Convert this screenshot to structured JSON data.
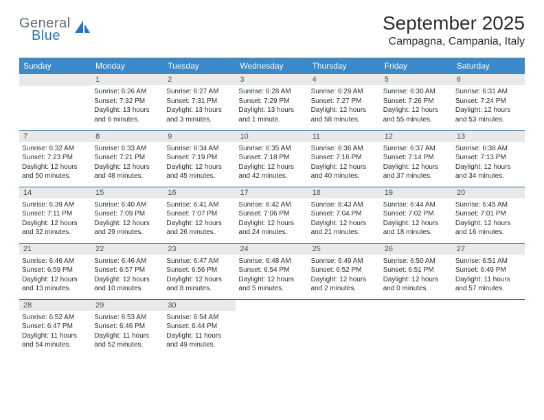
{
  "logo": {
    "general": "General",
    "blue": "Blue",
    "icon_color": "#2877bc"
  },
  "title": "September 2025",
  "location": "Campagna, Campania, Italy",
  "colors": {
    "header_bg": "#3b89c8",
    "header_fg": "#ffffff",
    "daynum_bg": "#e7e9ea",
    "row_border": "#2b5f8f",
    "text": "#2a2e33",
    "logo_gray": "#606a73",
    "logo_blue": "#2877bc",
    "page_bg": "#ffffff"
  },
  "typography": {
    "title_fontsize": 28,
    "location_fontsize": 16,
    "dayheader_fontsize": 12,
    "cell_fontsize": 10,
    "daynum_fontsize": 11,
    "logo_fontsize": 20
  },
  "day_headers": [
    "Sunday",
    "Monday",
    "Tuesday",
    "Wednesday",
    "Thursday",
    "Friday",
    "Saturday"
  ],
  "weeks": [
    [
      null,
      {
        "n": "1",
        "sr": "Sunrise: 6:26 AM",
        "ss": "Sunset: 7:32 PM",
        "d1": "Daylight: 13 hours",
        "d2": "and 6 minutes."
      },
      {
        "n": "2",
        "sr": "Sunrise: 6:27 AM",
        "ss": "Sunset: 7:31 PM",
        "d1": "Daylight: 13 hours",
        "d2": "and 3 minutes."
      },
      {
        "n": "3",
        "sr": "Sunrise: 6:28 AM",
        "ss": "Sunset: 7:29 PM",
        "d1": "Daylight: 13 hours",
        "d2": "and 1 minute."
      },
      {
        "n": "4",
        "sr": "Sunrise: 6:29 AM",
        "ss": "Sunset: 7:27 PM",
        "d1": "Daylight: 12 hours",
        "d2": "and 58 minutes."
      },
      {
        "n": "5",
        "sr": "Sunrise: 6:30 AM",
        "ss": "Sunset: 7:26 PM",
        "d1": "Daylight: 12 hours",
        "d2": "and 55 minutes."
      },
      {
        "n": "6",
        "sr": "Sunrise: 6:31 AM",
        "ss": "Sunset: 7:24 PM",
        "d1": "Daylight: 12 hours",
        "d2": "and 53 minutes."
      }
    ],
    [
      {
        "n": "7",
        "sr": "Sunrise: 6:32 AM",
        "ss": "Sunset: 7:23 PM",
        "d1": "Daylight: 12 hours",
        "d2": "and 50 minutes."
      },
      {
        "n": "8",
        "sr": "Sunrise: 6:33 AM",
        "ss": "Sunset: 7:21 PM",
        "d1": "Daylight: 12 hours",
        "d2": "and 48 minutes."
      },
      {
        "n": "9",
        "sr": "Sunrise: 6:34 AM",
        "ss": "Sunset: 7:19 PM",
        "d1": "Daylight: 12 hours",
        "d2": "and 45 minutes."
      },
      {
        "n": "10",
        "sr": "Sunrise: 6:35 AM",
        "ss": "Sunset: 7:18 PM",
        "d1": "Daylight: 12 hours",
        "d2": "and 42 minutes."
      },
      {
        "n": "11",
        "sr": "Sunrise: 6:36 AM",
        "ss": "Sunset: 7:16 PM",
        "d1": "Daylight: 12 hours",
        "d2": "and 40 minutes."
      },
      {
        "n": "12",
        "sr": "Sunrise: 6:37 AM",
        "ss": "Sunset: 7:14 PM",
        "d1": "Daylight: 12 hours",
        "d2": "and 37 minutes."
      },
      {
        "n": "13",
        "sr": "Sunrise: 6:38 AM",
        "ss": "Sunset: 7:13 PM",
        "d1": "Daylight: 12 hours",
        "d2": "and 34 minutes."
      }
    ],
    [
      {
        "n": "14",
        "sr": "Sunrise: 6:39 AM",
        "ss": "Sunset: 7:11 PM",
        "d1": "Daylight: 12 hours",
        "d2": "and 32 minutes."
      },
      {
        "n": "15",
        "sr": "Sunrise: 6:40 AM",
        "ss": "Sunset: 7:09 PM",
        "d1": "Daylight: 12 hours",
        "d2": "and 29 minutes."
      },
      {
        "n": "16",
        "sr": "Sunrise: 6:41 AM",
        "ss": "Sunset: 7:07 PM",
        "d1": "Daylight: 12 hours",
        "d2": "and 26 minutes."
      },
      {
        "n": "17",
        "sr": "Sunrise: 6:42 AM",
        "ss": "Sunset: 7:06 PM",
        "d1": "Daylight: 12 hours",
        "d2": "and 24 minutes."
      },
      {
        "n": "18",
        "sr": "Sunrise: 6:43 AM",
        "ss": "Sunset: 7:04 PM",
        "d1": "Daylight: 12 hours",
        "d2": "and 21 minutes."
      },
      {
        "n": "19",
        "sr": "Sunrise: 6:44 AM",
        "ss": "Sunset: 7:02 PM",
        "d1": "Daylight: 12 hours",
        "d2": "and 18 minutes."
      },
      {
        "n": "20",
        "sr": "Sunrise: 6:45 AM",
        "ss": "Sunset: 7:01 PM",
        "d1": "Daylight: 12 hours",
        "d2": "and 16 minutes."
      }
    ],
    [
      {
        "n": "21",
        "sr": "Sunrise: 6:46 AM",
        "ss": "Sunset: 6:59 PM",
        "d1": "Daylight: 12 hours",
        "d2": "and 13 minutes."
      },
      {
        "n": "22",
        "sr": "Sunrise: 6:46 AM",
        "ss": "Sunset: 6:57 PM",
        "d1": "Daylight: 12 hours",
        "d2": "and 10 minutes."
      },
      {
        "n": "23",
        "sr": "Sunrise: 6:47 AM",
        "ss": "Sunset: 6:56 PM",
        "d1": "Daylight: 12 hours",
        "d2": "and 8 minutes."
      },
      {
        "n": "24",
        "sr": "Sunrise: 6:48 AM",
        "ss": "Sunset: 6:54 PM",
        "d1": "Daylight: 12 hours",
        "d2": "and 5 minutes."
      },
      {
        "n": "25",
        "sr": "Sunrise: 6:49 AM",
        "ss": "Sunset: 6:52 PM",
        "d1": "Daylight: 12 hours",
        "d2": "and 2 minutes."
      },
      {
        "n": "26",
        "sr": "Sunrise: 6:50 AM",
        "ss": "Sunset: 6:51 PM",
        "d1": "Daylight: 12 hours",
        "d2": "and 0 minutes."
      },
      {
        "n": "27",
        "sr": "Sunrise: 6:51 AM",
        "ss": "Sunset: 6:49 PM",
        "d1": "Daylight: 11 hours",
        "d2": "and 57 minutes."
      }
    ],
    [
      {
        "n": "28",
        "sr": "Sunrise: 6:52 AM",
        "ss": "Sunset: 6:47 PM",
        "d1": "Daylight: 11 hours",
        "d2": "and 54 minutes."
      },
      {
        "n": "29",
        "sr": "Sunrise: 6:53 AM",
        "ss": "Sunset: 6:46 PM",
        "d1": "Daylight: 11 hours",
        "d2": "and 52 minutes."
      },
      {
        "n": "30",
        "sr": "Sunrise: 6:54 AM",
        "ss": "Sunset: 6:44 PM",
        "d1": "Daylight: 11 hours",
        "d2": "and 49 minutes."
      },
      null,
      null,
      null,
      null
    ]
  ]
}
